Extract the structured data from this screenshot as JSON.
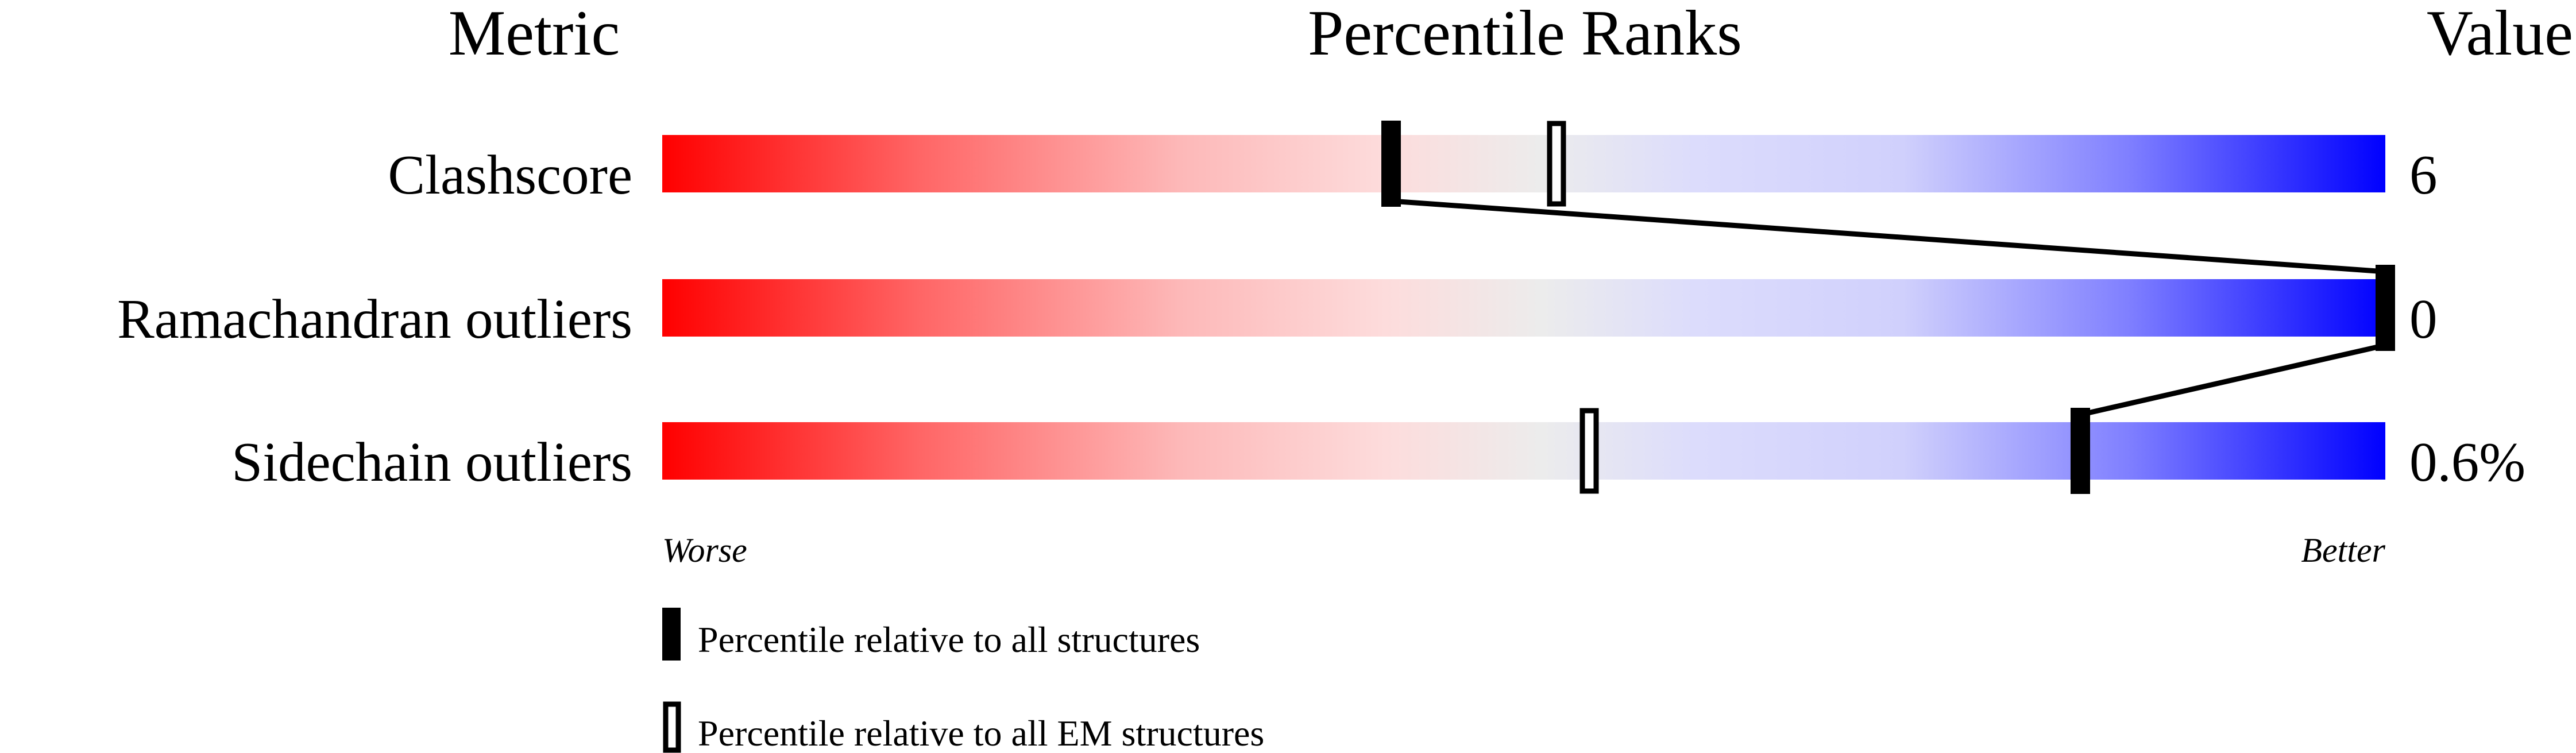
{
  "chart_data": {
    "type": "percentile-ranks",
    "headers": {
      "metric": "Metric",
      "ranks": "Percentile Ranks",
      "value": "Value"
    },
    "xlim": [
      0,
      100
    ],
    "gradient_colors": [
      "#ff0000",
      "#fddcdc",
      "#ececec",
      "#dcdcfc",
      "#0000ff"
    ],
    "rows": [
      {
        "metric": "Clashscore",
        "value": "6",
        "percentile_all": 42.3,
        "percentile_em": 51.9
      },
      {
        "metric": "Ramachandran outliers",
        "value": "0",
        "percentile_all": 100,
        "percentile_em": 100
      },
      {
        "metric": "Sidechain outliers",
        "value": "0.6%",
        "percentile_all": 82.3,
        "percentile_em": 53.8
      }
    ],
    "axis_labels": {
      "left": "Worse",
      "right": "Better"
    },
    "legend": [
      {
        "marker": "filled",
        "label": "Percentile relative to all structures"
      },
      {
        "marker": "hollow",
        "label": "Percentile relative to all EM structures"
      }
    ]
  }
}
